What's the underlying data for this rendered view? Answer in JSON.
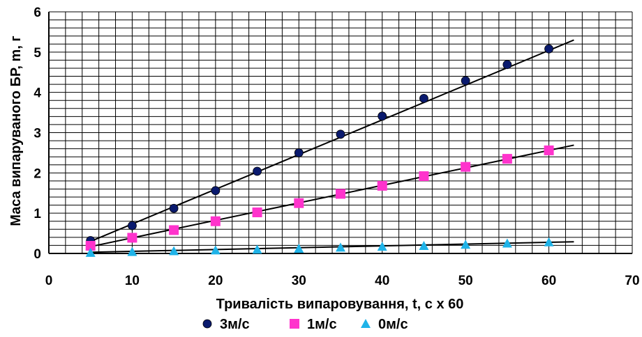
{
  "chart_data": {
    "type": "scatter",
    "xlabel": "Тривалість випаровування, t, с х 60",
    "ylabel": "Маса випаруваного БР, m, г",
    "xlim": [
      0,
      70
    ],
    "ylim": [
      0,
      6
    ],
    "x_ticks": [
      "0",
      "10",
      "20",
      "30",
      "40",
      "50",
      "60",
      "70"
    ],
    "y_ticks": [
      "0",
      "1",
      "2",
      "3",
      "4",
      "5",
      "6"
    ],
    "grid": true,
    "legend_position": "bottom",
    "series": [
      {
        "name": "3м/с",
        "color": "#0a1a6e",
        "marker": "circle",
        "x": [
          5,
          10,
          15,
          20,
          25,
          30,
          35,
          40,
          45,
          50,
          55,
          60
        ],
        "y": [
          0.32,
          0.69,
          1.12,
          1.56,
          2.04,
          2.5,
          2.96,
          3.41,
          3.85,
          4.29,
          4.69,
          5.08
        ],
        "trend": [
          [
            5,
            0.3
          ],
          [
            63,
            5.3
          ]
        ]
      },
      {
        "name": "1м/с",
        "color": "#ff33cc",
        "marker": "square",
        "x": [
          5,
          10,
          15,
          20,
          25,
          30,
          35,
          40,
          45,
          50,
          55,
          60
        ],
        "y": [
          0.19,
          0.39,
          0.58,
          0.8,
          1.02,
          1.25,
          1.48,
          1.68,
          1.92,
          2.15,
          2.35,
          2.56
        ],
        "trend": [
          [
            5,
            0.17
          ],
          [
            63,
            2.69
          ]
        ]
      },
      {
        "name": "0м/с",
        "color": "#1fb3e8",
        "marker": "triangle",
        "x": [
          5,
          10,
          15,
          20,
          25,
          30,
          35,
          40,
          45,
          50,
          55,
          60
        ],
        "y": [
          0.02,
          0.04,
          0.06,
          0.08,
          0.1,
          0.12,
          0.15,
          0.17,
          0.19,
          0.22,
          0.25,
          0.28
        ],
        "trend": [
          [
            5,
            0.03
          ],
          [
            63,
            0.29
          ]
        ]
      }
    ]
  }
}
